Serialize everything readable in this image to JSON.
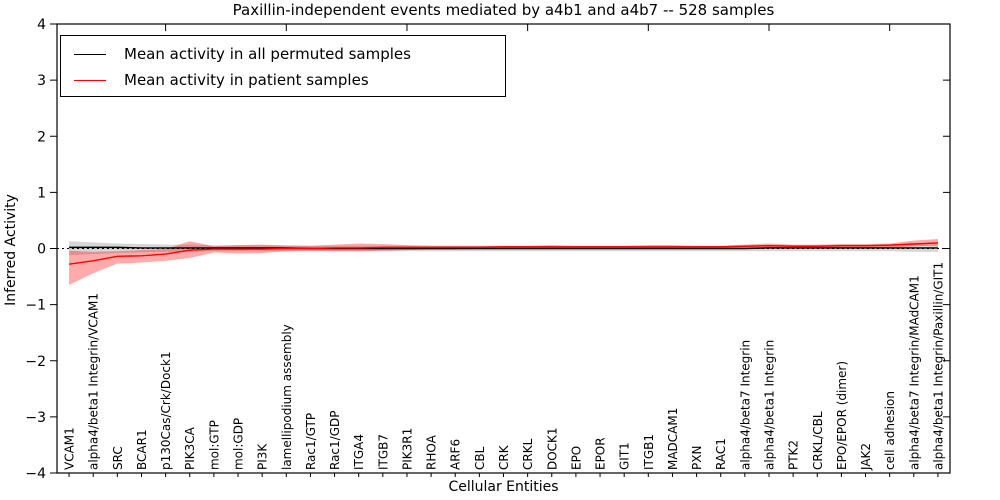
{
  "window": {
    "title": "Paxillin-independent events mediated by a4b1 and a4b7 -- 528 samples"
  },
  "legend": {
    "entries": [
      {
        "label": "Mean activity in all permuted samples",
        "color": "#000000"
      },
      {
        "label": "Mean activity in patient samples",
        "color": "#ff0000"
      }
    ],
    "position": "upper left"
  },
  "chart_data": {
    "type": "line",
    "title": "Paxillin-independent events mediated by a4b1 and a4b7 -- 528 samples",
    "xlabel": "Cellular Entities",
    "ylabel": "Inferred Activity",
    "ylim": [
      -4,
      4
    ],
    "yticks": [
      -4,
      -3,
      -2,
      -1,
      0,
      1,
      2,
      3,
      4
    ],
    "top_ticks_at_positions": [
      5,
      10,
      15,
      20,
      25,
      30,
      35
    ],
    "grid": false,
    "zero_line": {
      "show": true,
      "style": "dashed",
      "color": "#000000"
    },
    "legend_position": "upper left",
    "categories": [
      "VCAM1",
      "alpha4/beta1 Integrin/VCAM1",
      "SRC",
      "BCAR1",
      "p130Cas/Crk/Dock1",
      "PIK3CA",
      "mol:GTP",
      "mol:GDP",
      "PI3K",
      "lamellipodium assembly",
      "Rac1/GTP",
      "Rac1/GDP",
      "ITGA4",
      "ITGB7",
      "PIK3R1",
      "RHOA",
      "ARF6",
      "CBL",
      "CRK",
      "CRKL",
      "DOCK1",
      "EPO",
      "EPOR",
      "GIT1",
      "ITGB1",
      "MADCAM1",
      "PXN",
      "RAC1",
      "alpha4/beta7 Integrin",
      "alpha4/beta1 Integrin",
      "PTK2",
      "CRKL/CBL",
      "EPO/EPOR (dimer)",
      "JAK2",
      "cell adhesion",
      "alpha4/beta7 Integrin/MAdCAM1",
      "alpha4/beta1 Integrin/Paxillin/GIT1"
    ],
    "series": [
      {
        "name": "Mean activity in all permuted samples",
        "color": "#000000",
        "band_color": "rgba(0,0,0,0.16)",
        "values": [
          0.02,
          0.02,
          0.02,
          0.01,
          0.01,
          0.01,
          0.01,
          0.01,
          0.01,
          0.01,
          0.0,
          0.0,
          0.0,
          0.0,
          0.0,
          0.0,
          0.0,
          0.0,
          0.0,
          0.0,
          0.0,
          0.0,
          0.0,
          0.0,
          0.0,
          0.0,
          0.0,
          0.0,
          0.0,
          0.01,
          0.01,
          0.01,
          0.01,
          0.01,
          0.01,
          0.01,
          0.01
        ],
        "band_high": [
          0.13,
          0.11,
          0.09,
          0.08,
          0.07,
          0.07,
          0.06,
          0.06,
          0.06,
          0.06,
          0.05,
          0.05,
          0.05,
          0.05,
          0.05,
          0.05,
          0.05,
          0.05,
          0.05,
          0.05,
          0.05,
          0.05,
          0.05,
          0.05,
          0.05,
          0.05,
          0.05,
          0.05,
          0.05,
          0.06,
          0.06,
          0.06,
          0.06,
          0.06,
          0.06,
          0.07,
          0.08
        ],
        "band_low": [
          -0.12,
          -0.1,
          -0.08,
          -0.07,
          -0.06,
          -0.06,
          -0.05,
          -0.05,
          -0.05,
          -0.05,
          -0.05,
          -0.05,
          -0.05,
          -0.05,
          -0.05,
          -0.05,
          -0.05,
          -0.05,
          -0.05,
          -0.05,
          -0.05,
          -0.05,
          -0.05,
          -0.05,
          -0.05,
          -0.05,
          -0.05,
          -0.05,
          -0.05,
          -0.05,
          -0.05,
          -0.05,
          -0.05,
          -0.05,
          -0.05,
          -0.06,
          -0.06
        ]
      },
      {
        "name": "Mean activity in patient samples",
        "color": "#ff0000",
        "band_color": "rgba(255,0,0,0.33)",
        "values": [
          -0.28,
          -0.22,
          -0.14,
          -0.13,
          -0.1,
          -0.03,
          -0.01,
          -0.01,
          -0.01,
          0.0,
          0.0,
          0.01,
          0.01,
          0.02,
          0.02,
          0.02,
          0.02,
          0.02,
          0.03,
          0.03,
          0.03,
          0.03,
          0.03,
          0.03,
          0.03,
          0.03,
          0.03,
          0.03,
          0.04,
          0.05,
          0.04,
          0.04,
          0.05,
          0.05,
          0.06,
          0.08,
          0.1
        ],
        "band_high": [
          -0.04,
          -0.06,
          -0.05,
          -0.03,
          -0.01,
          0.13,
          0.04,
          0.06,
          0.07,
          0.05,
          0.05,
          0.07,
          0.09,
          0.08,
          0.06,
          0.05,
          0.05,
          0.05,
          0.05,
          0.05,
          0.06,
          0.05,
          0.05,
          0.05,
          0.06,
          0.06,
          0.05,
          0.05,
          0.07,
          0.09,
          0.07,
          0.07,
          0.08,
          0.08,
          0.09,
          0.14,
          0.17
        ],
        "band_low": [
          -0.65,
          -0.44,
          -0.27,
          -0.25,
          -0.22,
          -0.17,
          -0.07,
          -0.09,
          -0.08,
          -0.05,
          -0.04,
          -0.05,
          -0.05,
          -0.04,
          -0.03,
          -0.02,
          -0.02,
          -0.01,
          -0.01,
          -0.01,
          -0.01,
          -0.01,
          -0.01,
          -0.01,
          -0.01,
          -0.01,
          -0.01,
          -0.01,
          -0.01,
          0.0,
          0.0,
          0.0,
          0.01,
          0.01,
          0.02,
          0.04,
          0.05
        ]
      }
    ]
  }
}
